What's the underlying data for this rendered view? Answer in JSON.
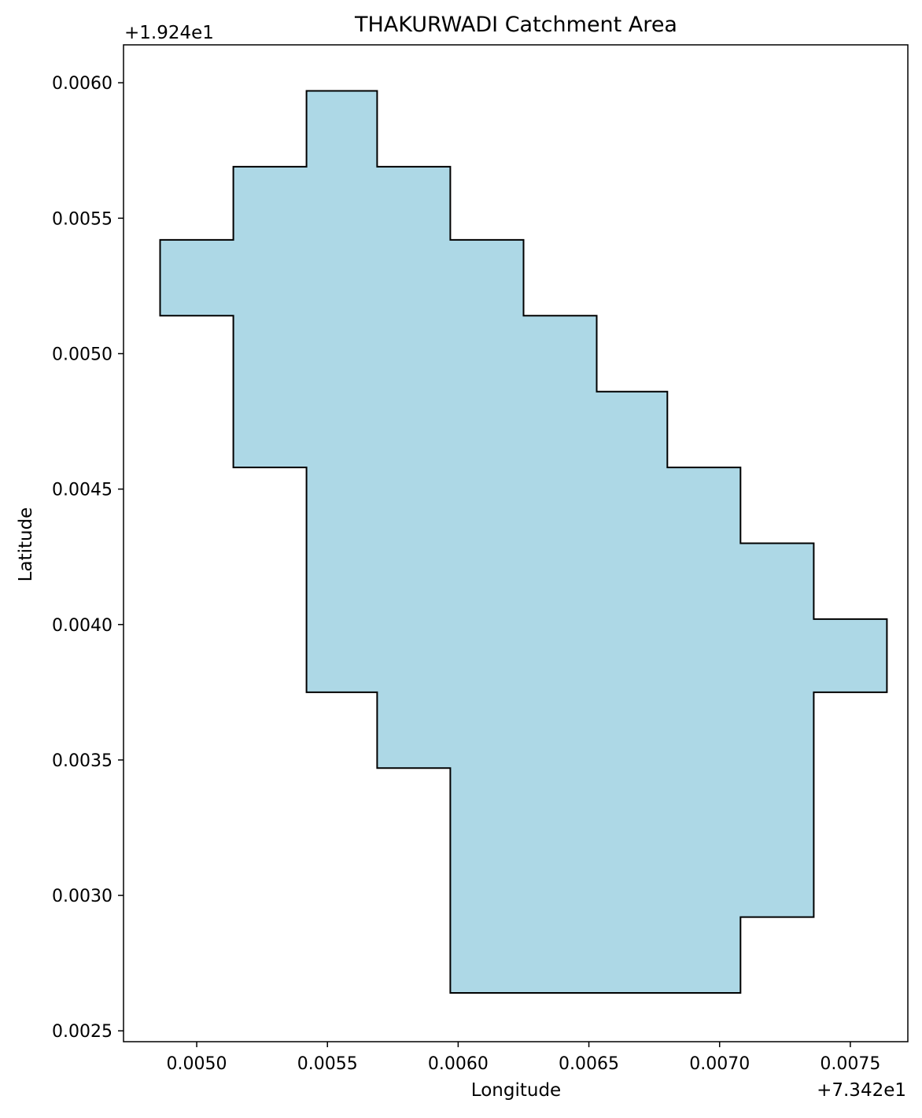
{
  "chart_data": {
    "type": "polygon",
    "title": "THAKURWADI Catchment Area",
    "xlabel": "Longitude",
    "ylabel": "Latitude",
    "x_offset_label": "+7.342e1",
    "y_offset_label": "+1.924e1",
    "x_offset": 73.42,
    "y_offset": 19.24,
    "xlim": [
      0.00472,
      0.00772
    ],
    "ylim": [
      0.00246,
      0.00614
    ],
    "x_ticks": [
      0.005,
      0.0055,
      0.006,
      0.0065,
      0.007,
      0.0075
    ],
    "x_tick_labels": [
      "0.0050",
      "0.0055",
      "0.0060",
      "0.0065",
      "0.0070",
      "0.0075"
    ],
    "y_ticks": [
      0.0025,
      0.003,
      0.0035,
      0.004,
      0.0045,
      0.005,
      0.0055,
      0.006
    ],
    "y_tick_labels": [
      "0.0025",
      "0.0030",
      "0.0035",
      "0.0040",
      "0.0045",
      "0.0050",
      "0.0055",
      "0.0060"
    ],
    "grid": false,
    "fill_color": "#add8e6",
    "edge_color": "#000000",
    "polygon": [
      [
        0.00542,
        0.00597
      ],
      [
        0.00569,
        0.00597
      ],
      [
        0.00569,
        0.00569
      ],
      [
        0.00597,
        0.00569
      ],
      [
        0.00597,
        0.00542
      ],
      [
        0.00625,
        0.00542
      ],
      [
        0.00625,
        0.00514
      ],
      [
        0.00653,
        0.00514
      ],
      [
        0.00653,
        0.00486
      ],
      [
        0.0068,
        0.00486
      ],
      [
        0.0068,
        0.00458
      ],
      [
        0.00708,
        0.00458
      ],
      [
        0.00708,
        0.0043
      ],
      [
        0.00736,
        0.0043
      ],
      [
        0.00736,
        0.00402
      ],
      [
        0.00764,
        0.00402
      ],
      [
        0.00764,
        0.00375
      ],
      [
        0.00736,
        0.00375
      ],
      [
        0.00736,
        0.00292
      ],
      [
        0.00708,
        0.00292
      ],
      [
        0.00708,
        0.00264
      ],
      [
        0.00597,
        0.00264
      ],
      [
        0.00597,
        0.00347
      ],
      [
        0.00569,
        0.00347
      ],
      [
        0.00569,
        0.00375
      ],
      [
        0.00542,
        0.00375
      ],
      [
        0.00542,
        0.00458
      ],
      [
        0.00514,
        0.00458
      ],
      [
        0.00514,
        0.00514
      ],
      [
        0.00486,
        0.00514
      ],
      [
        0.00486,
        0.00542
      ],
      [
        0.00514,
        0.00542
      ],
      [
        0.00514,
        0.00569
      ],
      [
        0.00542,
        0.00569
      ]
    ]
  }
}
